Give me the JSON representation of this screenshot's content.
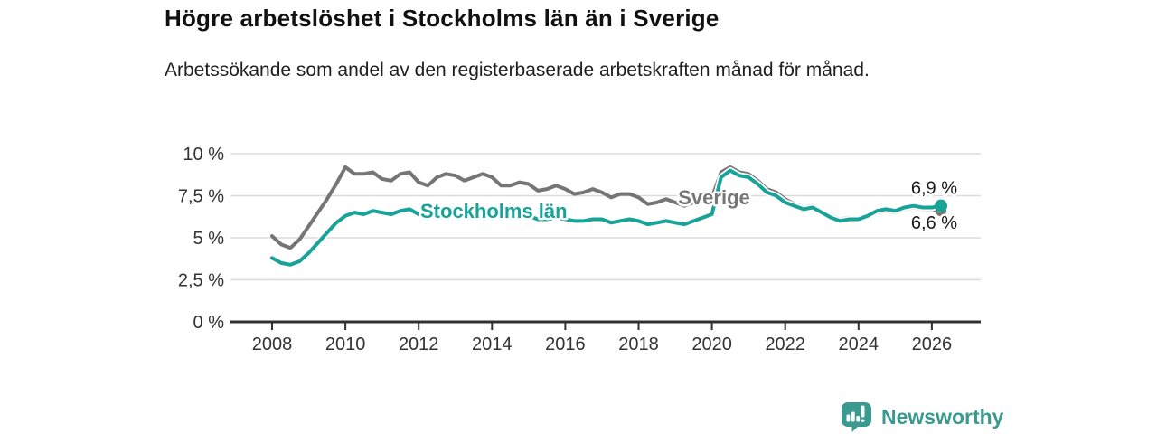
{
  "header": {
    "title": "Högre arbetslöshet i Stockholms län än i Sverige",
    "subtitle": "Arbetssökande som andel av den registerbaserade arbetskraften månad för månad."
  },
  "footer": {
    "brand": "Newsworthy"
  },
  "colors": {
    "stockholm": "#17A398",
    "sverige": "#757575",
    "axis": "#303030",
    "grid": "#DBDBDB",
    "tick_text": "#333333",
    "value_text": "#1A1A1A",
    "brand": "#3A9A8F"
  },
  "chart_data": {
    "type": "line",
    "title": "Högre arbetslöshet i Stockholms län än i Sverige",
    "subtitle": "Arbetssökande som andel av den registerbaserade arbetskraften månad för månad.",
    "unit": "%",
    "grid": "horizontal",
    "legend": "inline-labels",
    "x_start": 2008.0,
    "x_step_years": 0.25,
    "xlim": [
      2008,
      2026.3
    ],
    "ylim": [
      0,
      10
    ],
    "y_ticks": [
      {
        "value": 10,
        "label": "10 %"
      },
      {
        "value": 7.5,
        "label": "7,5 %"
      },
      {
        "value": 5,
        "label": "5 %"
      },
      {
        "value": 2.5,
        "label": "2,5 %"
      },
      {
        "value": 0,
        "label": "0 %"
      }
    ],
    "x_ticks": [
      {
        "value": 2008,
        "label": "2008"
      },
      {
        "value": 2010,
        "label": "2010"
      },
      {
        "value": 2012,
        "label": "2012"
      },
      {
        "value": 2014,
        "label": "2014"
      },
      {
        "value": 2016,
        "label": "2016"
      },
      {
        "value": 2018,
        "label": "2018"
      },
      {
        "value": 2020,
        "label": "2020"
      },
      {
        "value": 2022,
        "label": "2022"
      },
      {
        "value": 2024,
        "label": "2024"
      },
      {
        "value": 2026,
        "label": "2026"
      }
    ],
    "series": [
      {
        "name": "Sverige",
        "color": "#757575",
        "inline_label": "Sverige",
        "end_value": 6.6,
        "end_label": "6,6 %",
        "values": [
          5.1,
          4.6,
          4.4,
          4.9,
          5.7,
          6.5,
          7.3,
          8.2,
          9.2,
          8.8,
          8.8,
          8.9,
          8.5,
          8.4,
          8.8,
          8.9,
          8.3,
          8.1,
          8.6,
          8.8,
          8.7,
          8.4,
          8.6,
          8.8,
          8.6,
          8.1,
          8.1,
          8.3,
          8.2,
          7.8,
          7.9,
          8.1,
          7.9,
          7.6,
          7.7,
          7.9,
          7.7,
          7.4,
          7.6,
          7.6,
          7.4,
          7.0,
          7.1,
          7.3,
          7.1,
          6.9,
          7.1,
          7.3,
          7.4,
          8.9,
          9.2,
          8.9,
          8.8,
          8.4,
          7.9,
          7.7,
          7.3,
          7.0,
          6.8,
          6.9,
          6.6,
          6.3,
          6.1,
          6.2,
          6.1,
          6.3,
          6.5,
          6.6,
          6.5,
          6.7,
          6.8,
          6.7,
          6.7,
          6.6
        ]
      },
      {
        "name": "Stockholms län",
        "color": "#17A398",
        "inline_label": "Stockholms län",
        "end_value": 6.9,
        "end_label": "6,9 %",
        "values": [
          3.8,
          3.5,
          3.4,
          3.6,
          4.1,
          4.7,
          5.3,
          5.9,
          6.3,
          6.5,
          6.4,
          6.6,
          6.5,
          6.4,
          6.6,
          6.7,
          6.4,
          6.3,
          6.6,
          6.6,
          6.5,
          6.4,
          6.4,
          6.6,
          6.5,
          6.2,
          6.2,
          6.3,
          6.3,
          6.1,
          6.1,
          6.2,
          6.1,
          6.0,
          6.0,
          6.1,
          6.1,
          5.9,
          6.0,
          6.1,
          6.0,
          5.8,
          5.9,
          6.0,
          5.9,
          5.8,
          6.0,
          6.2,
          6.4,
          8.6,
          9.0,
          8.7,
          8.6,
          8.2,
          7.7,
          7.5,
          7.1,
          6.9,
          6.7,
          6.8,
          6.5,
          6.2,
          6.0,
          6.1,
          6.1,
          6.3,
          6.6,
          6.7,
          6.6,
          6.8,
          6.9,
          6.8,
          6.8,
          6.9
        ]
      }
    ]
  }
}
